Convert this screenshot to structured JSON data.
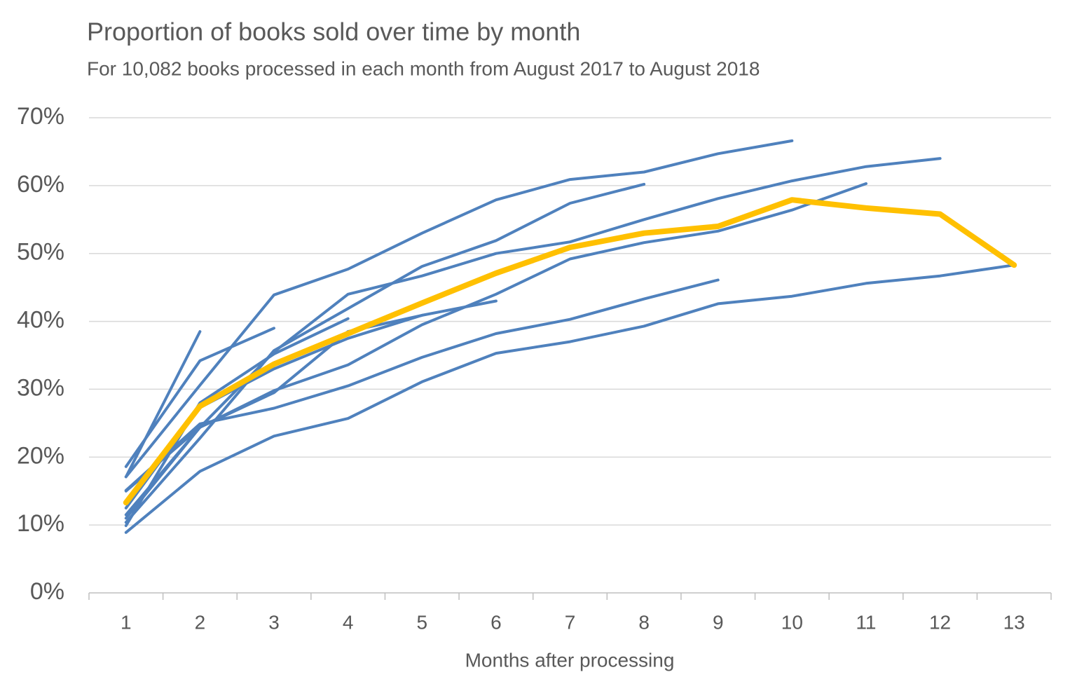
{
  "chart_data": {
    "type": "line",
    "title": "Proportion of books sold over time by month",
    "subtitle": "For 10,082 books processed in each month from August 2017 to August 2018",
    "xlabel": "Months after processing",
    "categories": [
      "1",
      "2",
      "3",
      "4",
      "5",
      "6",
      "7",
      "8",
      "9",
      "10",
      "11",
      "12",
      "13"
    ],
    "ylim": [
      0,
      70
    ],
    "yticks": [
      {
        "value": 0,
        "label": "0%"
      },
      {
        "value": 10,
        "label": "10%"
      },
      {
        "value": 20,
        "label": "20%"
      },
      {
        "value": 30,
        "label": "30%"
      },
      {
        "value": 40,
        "label": "40%"
      },
      {
        "value": 50,
        "label": "50%"
      },
      {
        "value": 60,
        "label": "60%"
      },
      {
        "value": 70,
        "label": "70%"
      }
    ],
    "grid": true,
    "series": [
      {
        "color": "#4f81bd",
        "values": [
          8.9,
          17.9,
          23.1,
          25.7,
          31.1,
          35.3,
          37,
          39.3,
          42.6,
          43.7,
          45.6,
          46.7,
          48.3
        ]
      },
      {
        "color": "#4f81bd",
        "values": [
          11,
          24.4,
          35.5,
          44,
          46.7,
          50,
          51.7,
          55,
          58.1,
          60.7,
          62.8,
          64,
          null
        ]
      },
      {
        "color": "#4f81bd",
        "values": [
          15,
          24.4,
          29.8,
          33.6,
          39.5,
          44,
          49.2,
          51.6,
          53.3,
          56.4,
          60.3,
          null,
          null
        ]
      },
      {
        "color": "#4f81bd",
        "values": [
          17.1,
          30.6,
          43.9,
          47.7,
          53,
          57.9,
          60.9,
          62,
          64.7,
          66.6,
          null,
          null,
          null
        ]
      },
      {
        "color": "#4f81bd",
        "values": [
          15.1,
          24.9,
          27.2,
          30.5,
          34.7,
          38.2,
          40.3,
          43.3,
          46.1,
          null,
          null,
          null,
          null
        ]
      },
      {
        "color": "#4f81bd",
        "values": [
          10.4,
          22.8,
          35.7,
          41.9,
          48.1,
          51.9,
          57.4,
          60.2,
          null,
          null,
          null,
          null,
          null
        ]
      },
      {
        "color": "#4f81bd",
        "values": [
          11.5,
          24.4,
          29.5,
          38.5,
          40.9,
          43,
          null,
          null,
          null,
          null,
          null,
          null,
          null
        ]
      },
      {
        "color": "#4f81bd",
        "values": [
          12.5,
          27.3,
          33,
          37.5,
          40.9,
          null,
          null,
          null,
          null,
          null,
          null,
          null,
          null
        ]
      },
      {
        "color": "#4f81bd",
        "values": [
          9.9,
          28,
          35.2,
          40.4,
          null,
          null,
          null,
          null,
          null,
          null,
          null,
          null,
          null
        ]
      },
      {
        "color": "#4f81bd",
        "values": [
          18.6,
          34.2,
          39,
          null,
          null,
          null,
          null,
          null,
          null,
          null,
          null,
          null,
          null
        ]
      },
      {
        "color": "#4f81bd",
        "values": [
          17.1,
          38.5,
          null,
          null,
          null,
          null,
          null,
          null,
          null,
          null,
          null,
          null,
          null
        ]
      },
      {
        "color": "#ffc000",
        "values": [
          13.3,
          27.5,
          33.7,
          38.2,
          42.7,
          47.1,
          50.9,
          53,
          54,
          57.9,
          56.7,
          55.8,
          48.3
        ]
      }
    ]
  }
}
